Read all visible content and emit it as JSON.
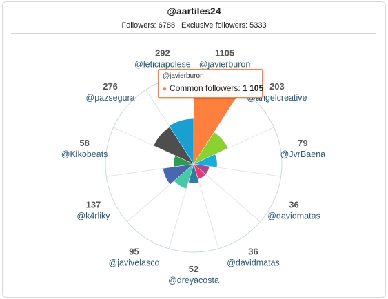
{
  "header": {
    "title": "@aartiles24",
    "subtitle": "Followers: 6788 | Exclusive followers: 5333"
  },
  "tooltip": {
    "user": "@javierburon",
    "label": "Common followers:",
    "value": "1 105"
  },
  "colors": {
    "highlight": "#ff7f3f",
    "grid": "#c8d7e2",
    "spoke": "#e3e3e3"
  },
  "chart_data": {
    "type": "polar-bar",
    "title": "@aartiles24",
    "subtitle": "Followers: 6788 | Exclusive followers: 5333",
    "categories": [
      "@javierburon",
      "@angelcreative",
      "@JvrBaena",
      "@davidmatas",
      "@davidmatas",
      "@dreyacosta",
      "@javivelasco",
      "@k4rliky",
      "@Kikobeats",
      "@pazsegura",
      "@leticiapolese"
    ],
    "values": [
      1105,
      203,
      79,
      36,
      36,
      52,
      95,
      137,
      58,
      276,
      292
    ],
    "value_labels": [
      "1105",
      "203",
      "79",
      "36",
      "36",
      "52",
      "95",
      "137",
      "58",
      "276",
      "292"
    ],
    "series_colors": [
      "#ff7f3f",
      "#8bd130",
      "#1aaddb",
      "#a54b8e",
      "#e8387a",
      "#2c7f9f",
      "#48c7a8",
      "#4b66b0",
      "#2f9b50",
      "#4e4e4e",
      "#1a9fd0"
    ],
    "ylim": [
      0,
      1105
    ],
    "radial_scale": "sqrt",
    "grid": true,
    "legend": "none"
  }
}
